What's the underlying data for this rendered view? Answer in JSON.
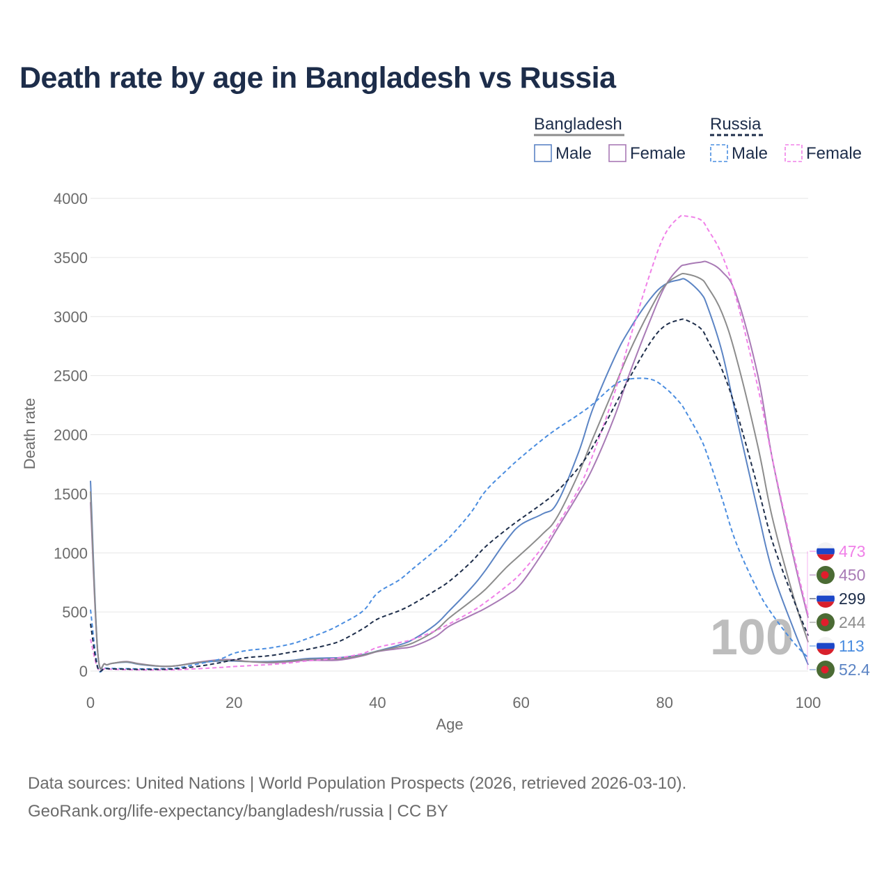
{
  "title": "Death rate by age in Bangladesh vs Russia",
  "source": {
    "line1": "Data sources: United Nations | World Population Prospects (2026, retrieved 2026-03-10).",
    "line2": "GeoRank.org/life-expectancy/bangladesh/russia | CC BY"
  },
  "legend": {
    "groups": [
      {
        "country": "Bangladesh",
        "header_color": "#8c8c8c",
        "dashed": false,
        "items": [
          {
            "label": "Male",
            "color": "#5b84c4"
          },
          {
            "label": "Female",
            "color": "#a87ab5"
          }
        ]
      },
      {
        "country": "Russia",
        "header_color": "#1d2d4a",
        "dashed": true,
        "items": [
          {
            "label": "Male",
            "color": "#4a8de0"
          },
          {
            "label": "Female",
            "color": "#f080e8"
          }
        ]
      }
    ]
  },
  "frame_label": "100",
  "chart_data": {
    "type": "line",
    "title": "Death rate by age in Bangladesh vs Russia",
    "xlabel": "Age",
    "ylabel": "Death rate",
    "xlim": [
      0,
      100
    ],
    "ylim": [
      0,
      4000
    ],
    "xticks": [
      0,
      20,
      40,
      60,
      80,
      100
    ],
    "yticks": [
      0,
      500,
      1000,
      1500,
      2000,
      2500,
      3000,
      3500,
      4000
    ],
    "grid": true,
    "x": [
      0,
      1,
      2,
      3,
      5,
      7,
      10,
      12,
      15,
      18,
      20,
      22,
      25,
      28,
      30,
      33,
      35,
      38,
      40,
      43,
      45,
      48,
      50,
      53,
      55,
      58,
      60,
      63,
      65,
      68,
      70,
      73,
      75,
      78,
      80,
      82,
      83,
      85,
      86,
      88,
      90,
      93,
      95,
      98,
      100
    ],
    "series": [
      {
        "name": "Bangladesh Male",
        "country": "Bangladesh",
        "sex": "Male",
        "color": "#5b84c4",
        "dash": false,
        "end_value": "52.4",
        "values": [
          1610,
          170,
          60,
          65,
          75,
          55,
          40,
          45,
          70,
          85,
          85,
          80,
          80,
          90,
          105,
          110,
          115,
          140,
          170,
          220,
          270,
          390,
          510,
          700,
          850,
          1110,
          1240,
          1330,
          1420,
          1850,
          2220,
          2650,
          2880,
          3150,
          3270,
          3310,
          3310,
          3200,
          3080,
          2700,
          2150,
          1350,
          850,
          350,
          52.4
        ]
      },
      {
        "name": "Bangladesh Female",
        "country": "Bangladesh",
        "sex": "Female",
        "color": "#a87ab5",
        "dash": false,
        "end_value": "450",
        "values": [
          1430,
          160,
          60,
          65,
          80,
          60,
          40,
          45,
          75,
          95,
          95,
          80,
          70,
          80,
          90,
          90,
          95,
          130,
          165,
          190,
          210,
          290,
          380,
          470,
          530,
          640,
          740,
          1000,
          1200,
          1500,
          1720,
          2150,
          2500,
          2970,
          3250,
          3410,
          3440,
          3460,
          3460,
          3380,
          3180,
          2500,
          1800,
          950,
          450
        ]
      },
      {
        "name": "Bangladesh Total",
        "country": "Bangladesh",
        "sex": "Total",
        "color": "#8c8c8c",
        "dash": false,
        "end_value": "244",
        "values": [
          1520,
          165,
          60,
          65,
          78,
          58,
          40,
          45,
          72,
          90,
          90,
          80,
          75,
          85,
          98,
          100,
          105,
          135,
          168,
          205,
          240,
          340,
          450,
          590,
          690,
          880,
          990,
          1160,
          1300,
          1670,
          1970,
          2400,
          2690,
          3060,
          3260,
          3350,
          3360,
          3320,
          3250,
          3030,
          2650,
          1900,
          1300,
          620,
          244
        ]
      },
      {
        "name": "Russia Male",
        "country": "Russia",
        "sex": "Male",
        "color": "#4a8de0",
        "dash": true,
        "end_value": "113",
        "values": [
          520,
          35,
          25,
          22,
          20,
          18,
          20,
          25,
          60,
          100,
          150,
          175,
          195,
          230,
          270,
          340,
          400,
          510,
          660,
          770,
          870,
          1020,
          1130,
          1340,
          1520,
          1700,
          1810,
          1960,
          2050,
          2170,
          2260,
          2420,
          2470,
          2470,
          2400,
          2280,
          2190,
          1970,
          1820,
          1460,
          1080,
          680,
          480,
          240,
          113
        ]
      },
      {
        "name": "Russia Female",
        "country": "Russia",
        "sex": "Female",
        "color": "#f080e8",
        "dash": true,
        "end_value": "473",
        "values": [
          270,
          25,
          18,
          15,
          12,
          10,
          10,
          12,
          20,
          30,
          38,
          45,
          55,
          70,
          85,
          100,
          115,
          150,
          200,
          240,
          270,
          340,
          400,
          500,
          580,
          720,
          830,
          1050,
          1230,
          1540,
          1830,
          2350,
          2780,
          3370,
          3690,
          3840,
          3850,
          3820,
          3740,
          3520,
          3150,
          2400,
          1800,
          980,
          473
        ]
      },
      {
        "name": "Russia Total",
        "country": "Russia",
        "sex": "Total",
        "color": "#1d2d4a",
        "dash": true,
        "end_value": "299",
        "values": [
          400,
          30,
          22,
          18,
          16,
          14,
          15,
          20,
          40,
          70,
          95,
          115,
          130,
          160,
          180,
          220,
          260,
          360,
          440,
          510,
          570,
          680,
          760,
          920,
          1050,
          1200,
          1290,
          1420,
          1520,
          1720,
          1900,
          2240,
          2470,
          2780,
          2920,
          2970,
          2970,
          2900,
          2800,
          2550,
          2200,
          1550,
          1100,
          600,
          299
        ]
      }
    ],
    "end_labels": [
      {
        "value": "473",
        "color": "#f080e8",
        "flag": "russia"
      },
      {
        "value": "450",
        "color": "#a87ab5",
        "flag": "bangladesh"
      },
      {
        "value": "299",
        "color": "#1d2d4a",
        "flag": "russia"
      },
      {
        "value": "244",
        "color": "#8c8c8c",
        "flag": "bangladesh"
      },
      {
        "value": "113",
        "color": "#4a8de0",
        "flag": "russia"
      },
      {
        "value": "52.4",
        "color": "#5b84c4",
        "flag": "bangladesh"
      }
    ]
  }
}
